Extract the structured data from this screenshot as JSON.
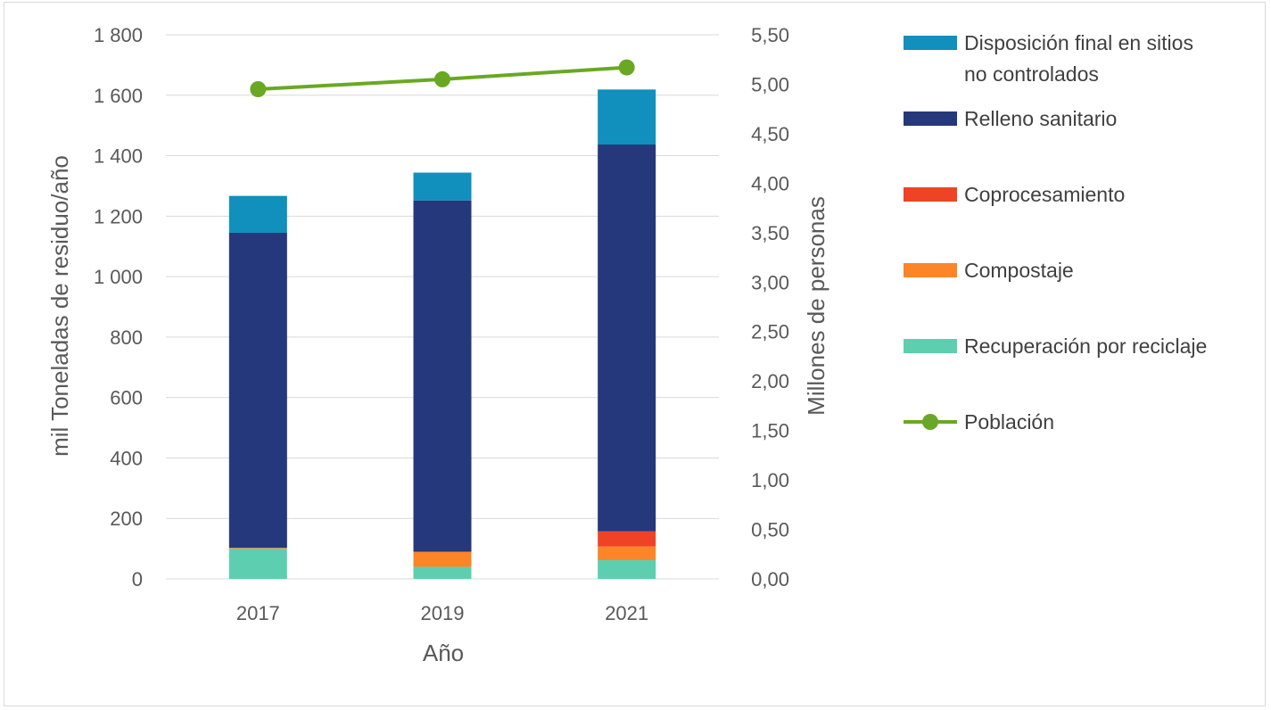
{
  "chart_data": {
    "type": "bar",
    "stacked": true,
    "xlabel": "Año",
    "ylabel_left": "mil Toneladas de residuo/año",
    "ylabel_right": "Millones de personas",
    "categories": [
      "2017",
      "2019",
      "2021"
    ],
    "ylim_left": [
      0,
      1800
    ],
    "yticks_left": [
      "0",
      "200",
      "400",
      "600",
      "800",
      "1 000",
      "1 200",
      "1 400",
      "1 600",
      "1 800"
    ],
    "ylim_right": [
      0,
      5.5
    ],
    "yticks_right": [
      "0,00",
      "0,50",
      "1,00",
      "1,50",
      "2,00",
      "2,50",
      "3,00",
      "3,50",
      "4,00",
      "4,50",
      "5,00",
      "5,50"
    ],
    "grid": true,
    "legend_position": "right",
    "series": [
      {
        "name": "Recuperación por reciclaje",
        "color": "#5dcfb0",
        "values": [
          100,
          40,
          62
        ]
      },
      {
        "name": "Compostaje",
        "color": "#fb8527",
        "values": [
          3,
          50,
          45
        ]
      },
      {
        "name": "Coprocesamiento",
        "color": "#ef4325",
        "values": [
          0,
          0,
          50
        ]
      },
      {
        "name": "Relleno sanitario",
        "color": "#25387c",
        "values": [
          1042,
          1162,
          1280
        ]
      },
      {
        "name": "Disposición final en sitios no controlados",
        "color": "#118fbd",
        "values": [
          122,
          92,
          182
        ]
      }
    ],
    "line_series": {
      "name": "Población",
      "color": "#6aa824",
      "axis": "right",
      "values": [
        4.95,
        5.05,
        5.17
      ]
    },
    "legend_lines": [
      [
        "Disposición final en sitios",
        "no controlados"
      ],
      [
        "Relleno sanitario"
      ],
      [
        "Coprocesamiento"
      ],
      [
        "Compostaje"
      ],
      [
        "Recuperación por reciclaje"
      ],
      [
        "Población"
      ]
    ]
  }
}
